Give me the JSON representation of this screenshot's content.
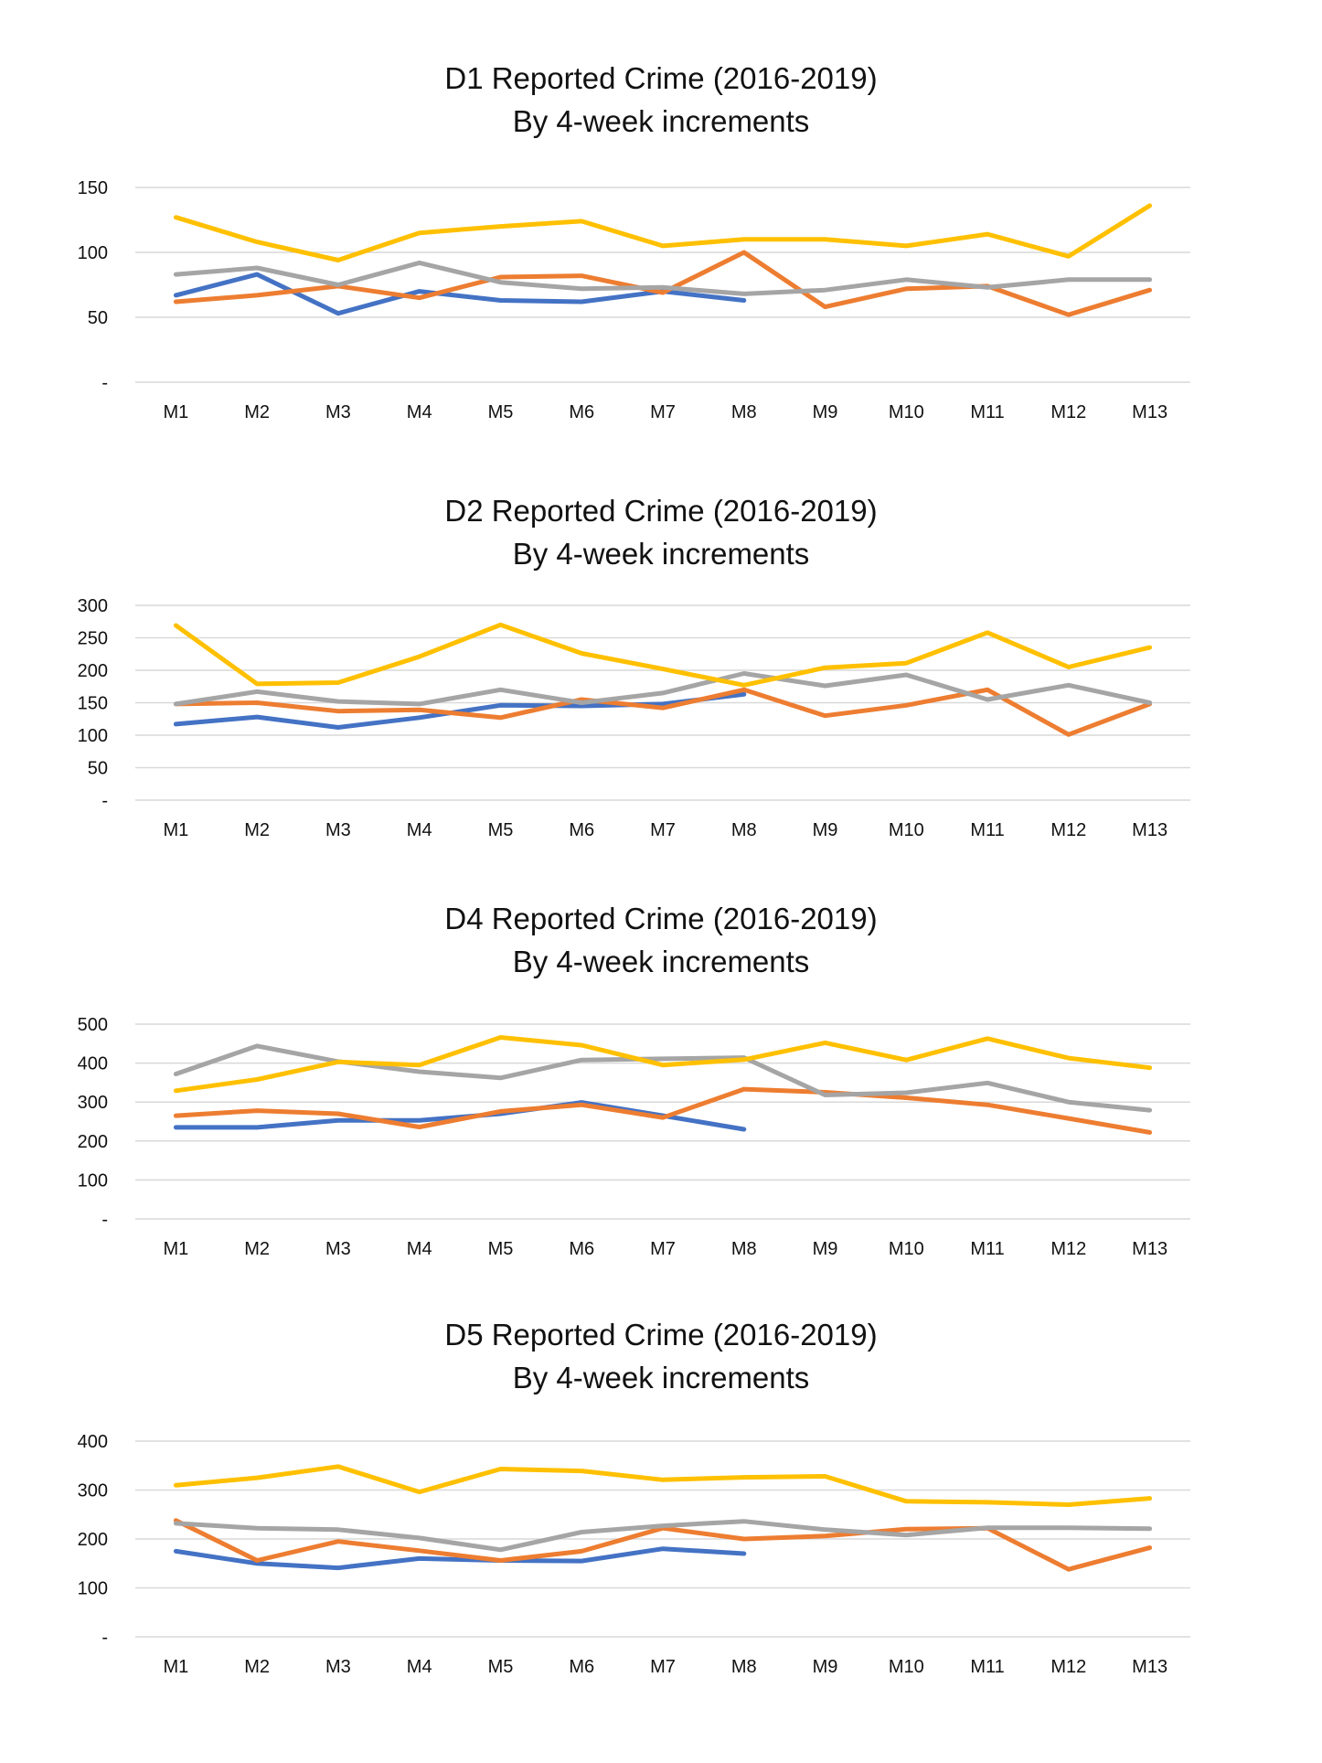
{
  "chart_data": [
    {
      "type": "line",
      "title": "D1 Reported Crime (2016-2019)",
      "subtitle": "By 4-week increments",
      "categories": [
        "M1",
        "M2",
        "M3",
        "M4",
        "M5",
        "M6",
        "M7",
        "M8",
        "M9",
        "M10",
        "M11",
        "M12",
        "M13"
      ],
      "ylim": [
        0,
        150
      ],
      "yticks": [
        0,
        50,
        100,
        150
      ],
      "ytick_labels": [
        "-",
        "50",
        "100",
        "150"
      ],
      "grid": true,
      "series": [
        {
          "color": "#4472C4",
          "values": [
            67,
            83,
            53,
            70,
            63,
            62,
            70,
            63,
            null,
            null,
            null,
            null,
            null
          ]
        },
        {
          "color": "#ED7D31",
          "values": [
            62,
            67,
            74,
            65,
            81,
            82,
            69,
            100,
            58,
            72,
            74,
            52,
            71
          ]
        },
        {
          "color": "#A5A5A5",
          "values": [
            83,
            88,
            75,
            92,
            77,
            72,
            73,
            68,
            71,
            79,
            73,
            79,
            79
          ]
        },
        {
          "color": "#FFC000",
          "values": [
            127,
            108,
            94,
            115,
            120,
            124,
            105,
            110,
            110,
            105,
            114,
            97,
            136
          ]
        }
      ]
    },
    {
      "type": "line",
      "title": "D2 Reported Crime (2016-2019)",
      "subtitle": "By 4-week increments",
      "categories": [
        "M1",
        "M2",
        "M3",
        "M4",
        "M5",
        "M6",
        "M7",
        "M8",
        "M9",
        "M10",
        "M11",
        "M12",
        "M13"
      ],
      "ylim": [
        0,
        300
      ],
      "yticks": [
        0,
        50,
        100,
        150,
        200,
        250,
        300
      ],
      "ytick_labels": [
        "-",
        "50",
        "100",
        "150",
        "200",
        "250",
        "300"
      ],
      "grid": true,
      "series": [
        {
          "color": "#4472C4",
          "values": [
            117,
            128,
            112,
            127,
            146,
            145,
            148,
            163,
            null,
            null,
            null,
            null,
            null
          ]
        },
        {
          "color": "#ED7D31",
          "values": [
            148,
            150,
            137,
            139,
            127,
            155,
            142,
            170,
            130,
            146,
            170,
            101,
            148
          ]
        },
        {
          "color": "#A5A5A5",
          "values": [
            148,
            167,
            152,
            148,
            170,
            150,
            165,
            195,
            176,
            193,
            155,
            177,
            150
          ]
        },
        {
          "color": "#FFC000",
          "values": [
            269,
            179,
            181,
            221,
            270,
            226,
            202,
            177,
            204,
            211,
            258,
            205,
            235
          ]
        }
      ]
    },
    {
      "type": "line",
      "title": "D4 Reported Crime (2016-2019)",
      "subtitle": "By 4-week increments",
      "categories": [
        "M1",
        "M2",
        "M3",
        "M4",
        "M5",
        "M6",
        "M7",
        "M8",
        "M9",
        "M10",
        "M11",
        "M12",
        "M13"
      ],
      "ylim": [
        0,
        500
      ],
      "yticks": [
        0,
        100,
        200,
        300,
        400,
        500
      ],
      "ytick_labels": [
        "-",
        "100",
        "200",
        "300",
        "400",
        "500"
      ],
      "grid": true,
      "series": [
        {
          "color": "#4472C4",
          "values": [
            235,
            235,
            253,
            253,
            270,
            299,
            265,
            230,
            null,
            null,
            null,
            null,
            null
          ]
        },
        {
          "color": "#ED7D31",
          "values": [
            265,
            278,
            270,
            236,
            276,
            293,
            260,
            333,
            325,
            311,
            293,
            258,
            222
          ]
        },
        {
          "color": "#A5A5A5",
          "values": [
            372,
            444,
            404,
            378,
            362,
            408,
            411,
            414,
            318,
            324,
            349,
            300,
            279
          ]
        },
        {
          "color": "#FFC000",
          "values": [
            329,
            358,
            403,
            395,
            466,
            446,
            395,
            409,
            452,
            408,
            463,
            413,
            388
          ]
        }
      ]
    },
    {
      "type": "line",
      "title": "D5 Reported Crime (2016-2019)",
      "subtitle": "By 4-week increments",
      "categories": [
        "M1",
        "M2",
        "M3",
        "M4",
        "M5",
        "M6",
        "M7",
        "M8",
        "M9",
        "M10",
        "M11",
        "M12",
        "M13"
      ],
      "ylim": [
        0,
        400
      ],
      "yticks": [
        0,
        100,
        200,
        300,
        400
      ],
      "ytick_labels": [
        "-",
        "100",
        "200",
        "300",
        "400"
      ],
      "grid": true,
      "series": [
        {
          "color": "#4472C4",
          "values": [
            175,
            150,
            141,
            160,
            156,
            155,
            180,
            170,
            null,
            null,
            null,
            null,
            null
          ]
        },
        {
          "color": "#ED7D31",
          "values": [
            238,
            156,
            195,
            176,
            156,
            175,
            222,
            200,
            206,
            220,
            222,
            138,
            182
          ]
        },
        {
          "color": "#A5A5A5",
          "values": [
            232,
            222,
            219,
            202,
            178,
            214,
            227,
            236,
            219,
            208,
            223,
            223,
            221
          ]
        },
        {
          "color": "#FFC000",
          "values": [
            310,
            325,
            348,
            296,
            343,
            339,
            321,
            326,
            328,
            277,
            275,
            270,
            283
          ]
        }
      ]
    }
  ]
}
